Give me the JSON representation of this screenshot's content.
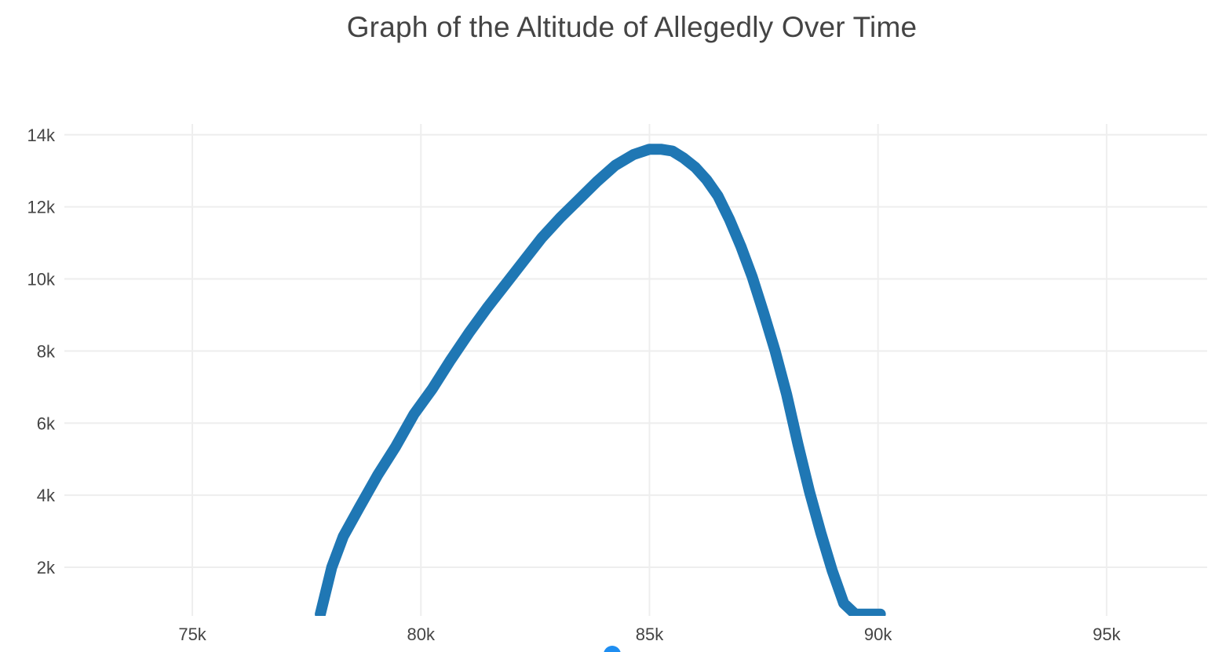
{
  "chart_data": {
    "type": "line",
    "title": "Graph of the Altitude of Allegedly Over Time",
    "xlabel": "",
    "ylabel": "",
    "xlim": [
      72200,
      97200
    ],
    "ylim": [
      650,
      14300
    ],
    "x_ticks": [
      {
        "value": 75000,
        "label": "75k"
      },
      {
        "value": 80000,
        "label": "80k"
      },
      {
        "value": 85000,
        "label": "85k"
      },
      {
        "value": 90000,
        "label": "90k"
      },
      {
        "value": 95000,
        "label": "95k"
      }
    ],
    "y_ticks": [
      {
        "value": 2000,
        "label": "2k"
      },
      {
        "value": 4000,
        "label": "4k"
      },
      {
        "value": 6000,
        "label": "6k"
      },
      {
        "value": 8000,
        "label": "8k"
      },
      {
        "value": 10000,
        "label": "10k"
      },
      {
        "value": 12000,
        "label": "12k"
      },
      {
        "value": 14000,
        "label": "14k"
      }
    ],
    "grid": true,
    "legend": "none",
    "series": [
      {
        "color": "#1f77b4",
        "x": [
          77800,
          78050,
          78300,
          78650,
          79050,
          79450,
          79850,
          80250,
          80650,
          81050,
          81450,
          81850,
          82250,
          82650,
          83050,
          83450,
          83850,
          84250,
          84650,
          85000,
          85250,
          85500,
          85750,
          86000,
          86250,
          86500,
          86750,
          87000,
          87250,
          87500,
          87750,
          88000,
          88250,
          88500,
          88750,
          89000,
          89250,
          89500,
          89750,
          90050
        ],
        "y": [
          700,
          2000,
          2850,
          3650,
          4550,
          5350,
          6250,
          6950,
          7750,
          8500,
          9200,
          9850,
          10500,
          11150,
          11700,
          12200,
          12700,
          13150,
          13450,
          13600,
          13600,
          13550,
          13350,
          13100,
          12750,
          12300,
          11650,
          10900,
          10050,
          9050,
          8000,
          6800,
          5400,
          4100,
          2950,
          1900,
          1000,
          700,
          700,
          700
        ]
      }
    ]
  },
  "colors": {
    "background": "#ffffff",
    "grid": "#eeeeee",
    "text": "#444444",
    "series_line": "#1f77b4",
    "cursor_dot": "#1f8ef1"
  }
}
